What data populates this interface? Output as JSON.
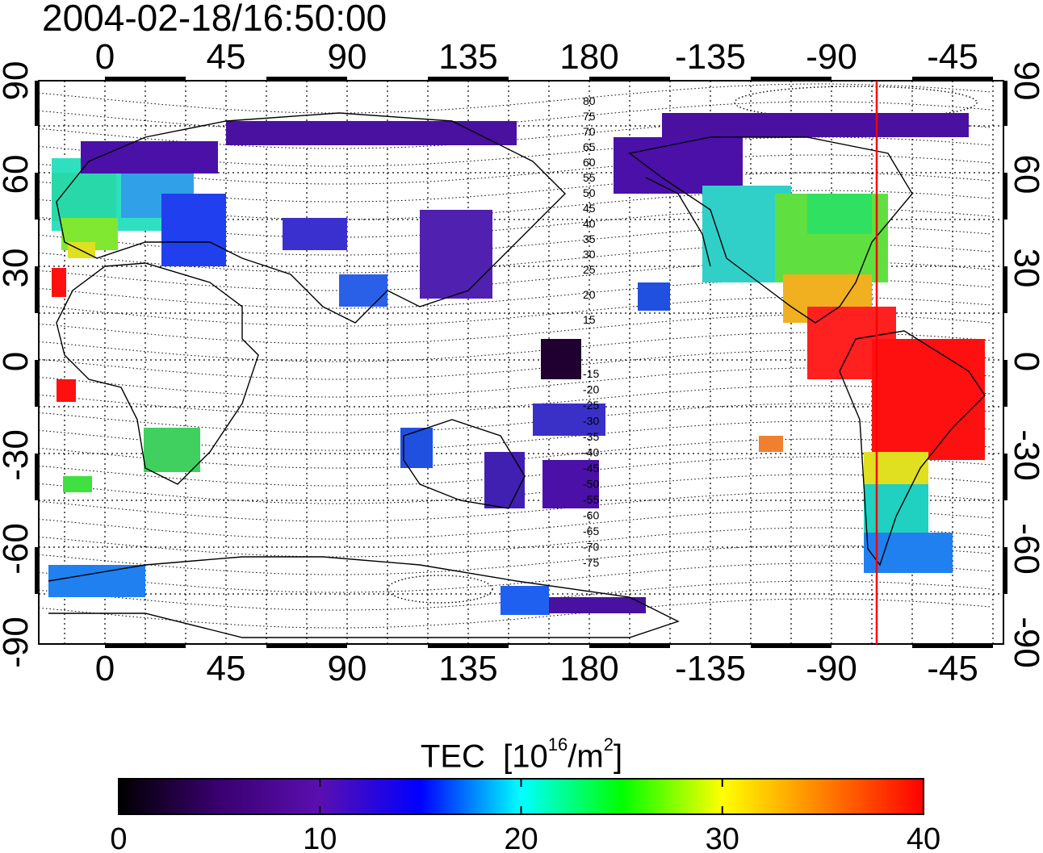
{
  "title": "2004-02-18/16:50:00",
  "colorbar": {
    "label": "TEC",
    "unit_prefix": "[10",
    "unit_exp": "16",
    "unit_mid": "/m",
    "unit_exp2": "2",
    "unit_suffix": "]",
    "ticks": [
      "0",
      "10",
      "20",
      "30",
      "40"
    ],
    "range": [
      0,
      40
    ],
    "colors": [
      "#000000",
      "#3a0070",
      "#5a0fb0",
      "#0000ff",
      "#00ffff",
      "#00ff00",
      "#ffff00",
      "#ff8000",
      "#ff0000"
    ]
  },
  "map": {
    "lon_ticks": [
      "0",
      "45",
      "90",
      "135",
      "180",
      "-135",
      "-90",
      "-45"
    ],
    "lat_ticks_left": [
      "90",
      "60",
      "30",
      "0",
      "-30",
      "-60",
      "-90"
    ],
    "lat_ticks_right": [
      "90",
      "60",
      "30",
      "0",
      "-30",
      "-60",
      "-90"
    ],
    "contour_labels_north": [
      "80",
      "75",
      "70",
      "65",
      "60",
      "55",
      "50",
      "45",
      "40",
      "35",
      "30",
      "25",
      "20",
      "15"
    ],
    "contour_labels_south": [
      "-15",
      "-20",
      "-25",
      "-30",
      "-35",
      "-40",
      "-45",
      "-50",
      "-55",
      "-60",
      "-65",
      "-70",
      "-75"
    ],
    "terminator_color": "#ff0000",
    "terminator_lon": -73
  }
}
